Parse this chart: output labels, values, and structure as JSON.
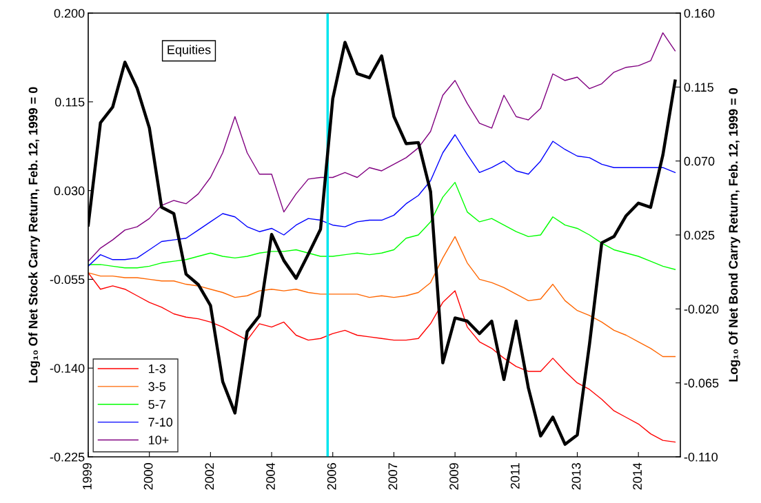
{
  "chart_data": {
    "type": "line",
    "ylabel": "Log₁₀ Of Net Stock Carry Return, Feb. 12, 1999 = 0",
    "y2label": "Log₁₀ Of Net Bond Carry Return, Feb. 12, 1999 = 0",
    "categories": [
      "1999",
      null,
      null,
      null,
      null,
      "2000",
      null,
      null,
      null,
      null,
      "2002",
      null,
      null,
      null,
      null,
      "2004",
      null,
      null,
      null,
      null,
      "2006",
      null,
      null,
      null,
      null,
      "2007",
      null,
      null,
      null,
      null,
      "2009",
      null,
      null,
      null,
      null,
      "2011",
      null,
      null,
      null,
      null,
      "2013",
      null,
      null,
      null,
      null,
      "2014",
      null,
      null,
      null
    ],
    "series": [
      {
        "name": "Equities",
        "color": "#000000",
        "axis": "y",
        "values": [
          -0.003,
          0.095,
          0.11,
          0.153,
          0.128,
          0.09,
          0.014,
          0.008,
          -0.05,
          -0.06,
          -0.08,
          -0.153,
          -0.183,
          -0.105,
          -0.09,
          -0.012,
          -0.037,
          -0.054,
          -0.031,
          -0.007,
          0.118,
          0.172,
          0.142,
          0.138,
          0.159,
          0.101,
          0.075,
          0.076,
          0.029,
          -0.135,
          -0.092,
          -0.095,
          -0.107,
          -0.095,
          -0.151,
          -0.095,
          -0.159,
          -0.205,
          -0.187,
          -0.213,
          -0.204,
          -0.117,
          -0.02,
          -0.014,
          0.006,
          0.018,
          0.014,
          0.064,
          0.135
        ]
      },
      {
        "name": "1-3",
        "color": "#ff0000",
        "axis": "y2",
        "values": [
          0.002,
          -0.008,
          -0.006,
          -0.008,
          -0.012,
          -0.016,
          -0.019,
          -0.023,
          -0.025,
          -0.026,
          -0.028,
          -0.031,
          -0.035,
          -0.039,
          -0.029,
          -0.031,
          -0.028,
          -0.036,
          -0.039,
          -0.038,
          -0.035,
          -0.033,
          -0.036,
          -0.037,
          -0.038,
          -0.039,
          -0.039,
          -0.038,
          -0.029,
          -0.016,
          -0.009,
          -0.031,
          -0.04,
          -0.044,
          -0.05,
          -0.055,
          -0.058,
          -0.058,
          -0.05,
          -0.058,
          -0.065,
          -0.069,
          -0.075,
          -0.082,
          -0.086,
          -0.09,
          -0.096,
          -0.1,
          -0.101
        ]
      },
      {
        "name": "3-5",
        "color": "#ff6600",
        "axis": "y2",
        "values": [
          0.002,
          0,
          0,
          -0.001,
          -0.001,
          -0.002,
          -0.003,
          -0.003,
          -0.005,
          -0.006,
          -0.008,
          -0.01,
          -0.013,
          -0.012,
          -0.009,
          -0.008,
          -0.009,
          -0.008,
          -0.01,
          -0.011,
          -0.011,
          -0.011,
          -0.011,
          -0.013,
          -0.012,
          -0.013,
          -0.012,
          -0.01,
          -0.004,
          0.011,
          0.024,
          0.008,
          -0.002,
          -0.004,
          -0.007,
          -0.011,
          -0.015,
          -0.014,
          -0.005,
          -0.015,
          -0.021,
          -0.024,
          -0.028,
          -0.033,
          -0.036,
          -0.04,
          -0.044,
          -0.049,
          -0.049
        ]
      },
      {
        "name": "5-7",
        "color": "#00ff00",
        "axis": "y2",
        "values": [
          0.007,
          0.007,
          0.006,
          0.005,
          0.005,
          0.006,
          0.008,
          0.009,
          0.01,
          0.012,
          0.014,
          0.012,
          0.011,
          0.012,
          0.014,
          0.015,
          0.015,
          0.016,
          0.014,
          0.012,
          0.012,
          0.013,
          0.014,
          0.013,
          0.014,
          0.016,
          0.023,
          0.025,
          0.033,
          0.048,
          0.057,
          0.039,
          0.033,
          0.035,
          0.031,
          0.027,
          0.024,
          0.025,
          0.036,
          0.031,
          0.029,
          0.025,
          0.02,
          0.016,
          0.014,
          0.012,
          0.009,
          0.006,
          0.004
        ]
      },
      {
        "name": "7-10",
        "color": "#0000ff",
        "axis": "y2",
        "values": [
          0.006,
          0.013,
          0.01,
          0.01,
          0.011,
          0.016,
          0.021,
          0.022,
          0.023,
          0.028,
          0.033,
          0.038,
          0.036,
          0.03,
          0.027,
          0.029,
          0.025,
          0.031,
          0.035,
          0.034,
          0.031,
          0.03,
          0.033,
          0.034,
          0.034,
          0.037,
          0.044,
          0.049,
          0.058,
          0.075,
          0.086,
          0.074,
          0.063,
          0.066,
          0.07,
          0.064,
          0.062,
          0.07,
          0.082,
          0.077,
          0.073,
          0.072,
          0.068,
          0.066,
          0.066,
          0.066,
          0.066,
          0.066,
          0.063
        ]
      },
      {
        "name": "10+",
        "color": "#800080",
        "axis": "y2",
        "values": [
          0.009,
          0.017,
          0.022,
          0.028,
          0.03,
          0.035,
          0.043,
          0.046,
          0.044,
          0.05,
          0.06,
          0.075,
          0.097,
          0.075,
          0.062,
          0.062,
          0.039,
          0.05,
          0.059,
          0.06,
          0.06,
          0.063,
          0.06,
          0.066,
          0.064,
          0.068,
          0.072,
          0.078,
          0.088,
          0.11,
          0.119,
          0.105,
          0.093,
          0.09,
          0.11,
          0.097,
          0.095,
          0.102,
          0.123,
          0.119,
          0.121,
          0.114,
          0.117,
          0.124,
          0.127,
          0.128,
          0.131,
          0.148,
          0.137
        ]
      }
    ],
    "ylim": [
      -0.225,
      0.2
    ],
    "yticks": [
      {
        "value": -0.225,
        "label": "-0.225"
      },
      {
        "value": -0.14,
        "label": "-0.140"
      },
      {
        "value": -0.055,
        "label": "-0.055"
      },
      {
        "value": 0.03,
        "label": "0.030"
      },
      {
        "value": 0.115,
        "label": "0.115"
      },
      {
        "value": 0.2,
        "label": "0.200"
      }
    ],
    "y2lim": [
      -0.11,
      0.16
    ],
    "y2ticks": [
      {
        "value": -0.11,
        "label": "-0.110"
      },
      {
        "value": -0.065,
        "label": "-0.065"
      },
      {
        "value": -0.02,
        "label": "-0.020"
      },
      {
        "value": 0.025,
        "label": "0.025"
      },
      {
        "value": 0.07,
        "label": "0.070"
      },
      {
        "value": 0.115,
        "label": "0.115"
      },
      {
        "value": 0.16,
        "label": "0.160"
      }
    ],
    "legend": "bottom left",
    "grid": false
  }
}
